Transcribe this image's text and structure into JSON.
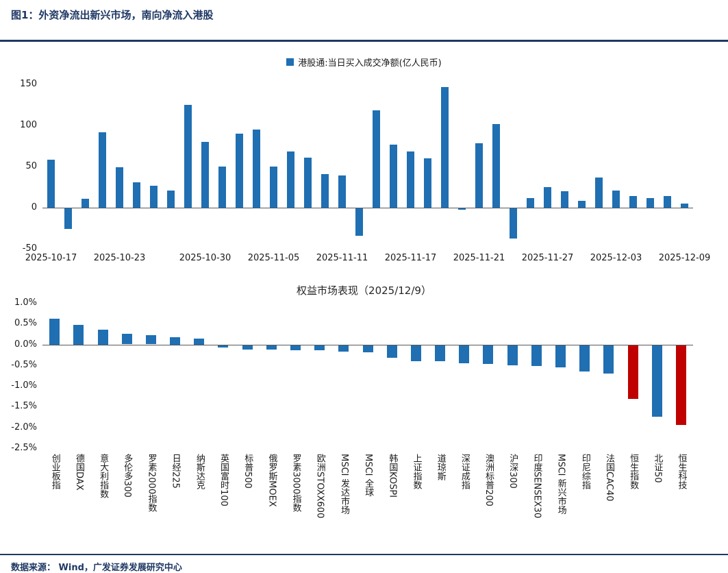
{
  "page": {
    "title": "图1：外资净流出新兴市场，南向净流入港股",
    "footer": "数据来源： Wind，广发证券发展研究中心",
    "accent_color": "#1F3864"
  },
  "chart_data": [
    {
      "type": "bar",
      "legend_label": "港股通:当日买入成交净额(亿人民币)",
      "color": "#1F6FB2",
      "ylim": [
        -50,
        150
      ],
      "yticks": [
        150,
        100,
        50,
        0,
        -50
      ],
      "ytick_labels": [
        "150",
        "100",
        "50",
        "0",
        "-50"
      ],
      "xtick_labels": [
        "2025-10-17",
        "2025-10-23",
        "2025-10-30",
        "2025-11-05",
        "2025-11-11",
        "2025-11-17",
        "2025-11-21",
        "2025-11-27",
        "2025-12-03",
        "2025-12-09"
      ],
      "xtick_bar_indices": [
        0,
        4,
        9,
        13,
        17,
        21,
        25,
        29,
        33,
        37
      ],
      "values": [
        58,
        -25,
        11,
        92,
        49,
        31,
        27,
        21,
        125,
        80,
        50,
        90,
        95,
        50,
        68,
        61,
        41,
        39,
        -33,
        118,
        77,
        68,
        60,
        147,
        -2,
        78,
        102,
        -37,
        12,
        25,
        20,
        8,
        37,
        21,
        14,
        12,
        14,
        5
      ],
      "grid": false,
      "legend_position": "top-center"
    },
    {
      "type": "bar",
      "title": "权益市场表现（2025/12/9）",
      "ylim": [
        -2.5,
        1.0
      ],
      "yticks": [
        1.0,
        0.5,
        0.0,
        -0.5,
        -1.0,
        -1.5,
        -2.0,
        -2.5
      ],
      "ytick_labels": [
        "1.0%",
        "0.5%",
        "0.0%",
        "-0.5%",
        "-1.0%",
        "-1.5%",
        "-2.0%",
        "-2.5%"
      ],
      "categories": [
        "创业板指",
        "德国DAX",
        "意大利指数",
        "多伦多300",
        "罗素2000指数",
        "日经225",
        "纳斯达克",
        "英国富时100",
        "标普500",
        "俄罗斯MOEX",
        "罗素3000指数",
        "欧洲STOXX600",
        "MSCI 发达市场",
        "MSCI 全球",
        "韩国KOSPI",
        "上证指数",
        "道琼斯",
        "深证成指",
        "澳洲标普200",
        "沪深300",
        "印度SENSEX30",
        "MSCI 新兴市场",
        "印尼综指",
        "法国CAC40",
        "恒生指数",
        "北证50",
        "恒生科技"
      ],
      "values": [
        0.62,
        0.48,
        0.35,
        0.25,
        0.22,
        0.17,
        0.14,
        -0.06,
        -0.1,
        -0.1,
        -0.12,
        -0.13,
        -0.15,
        -0.18,
        -0.3,
        -0.38,
        -0.38,
        -0.43,
        -0.45,
        -0.48,
        -0.5,
        -0.53,
        -0.63,
        -0.68,
        -1.3,
        -1.73,
        -1.93
      ],
      "color": "#1F6FB2",
      "highlight_color": "#C00000",
      "highlight_indices": [
        24,
        26
      ],
      "grid": false
    }
  ]
}
